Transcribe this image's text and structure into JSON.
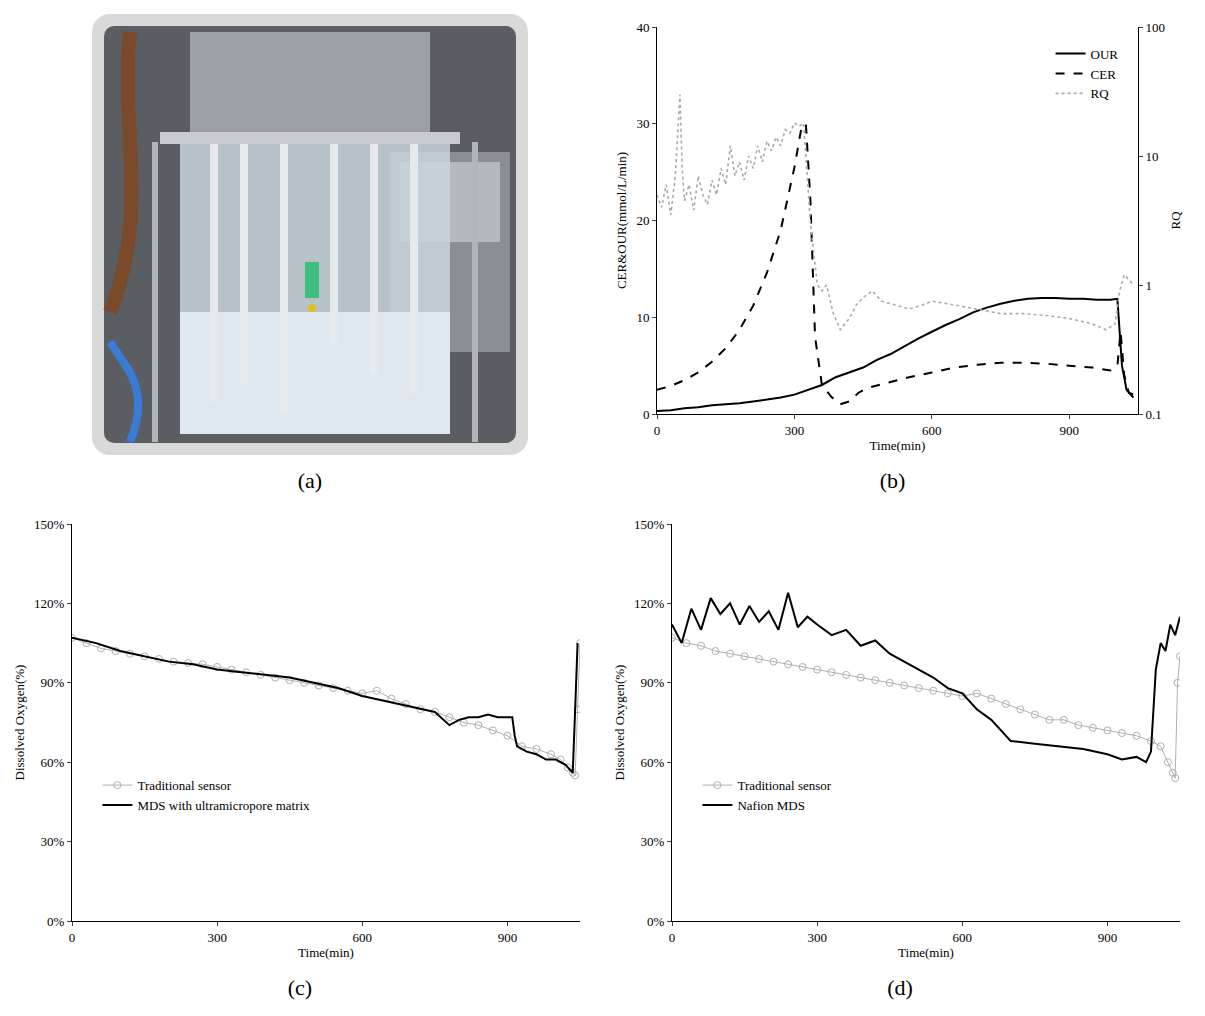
{
  "photo": {
    "caption": "(a)"
  },
  "chart_data": [
    {
      "type": "line",
      "title": "(b)",
      "x_label": "Time(min)",
      "y_label": "CER&OUR(mmol/L/min)",
      "y2_label": "RQ",
      "xlim": [
        0,
        1050
      ],
      "xticks": [
        0,
        300,
        600,
        900
      ],
      "ylim": [
        0,
        40
      ],
      "yticks": [
        0,
        10,
        20,
        30,
        40
      ],
      "y2lim": [
        0.1,
        100
      ],
      "y2ticks": [
        0.1,
        1,
        10,
        100
      ],
      "log": "y2",
      "grid": false,
      "legend": "upper right",
      "series": [
        {
          "name": "OUR",
          "color": "#000000",
          "line_style": "solid",
          "x": [
            0,
            30,
            60,
            90,
            120,
            150,
            180,
            210,
            240,
            270,
            300,
            330,
            360,
            390,
            420,
            450,
            480,
            510,
            540,
            570,
            600,
            630,
            660,
            690,
            720,
            750,
            780,
            810,
            840,
            870,
            900,
            930,
            960,
            990,
            1005,
            1015,
            1025,
            1035,
            1040
          ],
          "values": [
            0.3,
            0.4,
            0.6,
            0.7,
            0.9,
            1.0,
            1.1,
            1.3,
            1.5,
            1.7,
            2.0,
            2.5,
            3.0,
            3.8,
            4.3,
            4.8,
            5.6,
            6.2,
            7.0,
            7.8,
            8.5,
            9.2,
            9.8,
            10.5,
            11.0,
            11.4,
            11.7,
            11.9,
            12.0,
            12.0,
            11.9,
            11.9,
            11.8,
            11.8,
            11.9,
            5.0,
            2.5,
            1.9,
            1.7
          ]
        },
        {
          "name": "CER",
          "color": "#000000",
          "line_style": "dash",
          "x": [
            0,
            30,
            60,
            90,
            120,
            150,
            180,
            210,
            240,
            270,
            300,
            315,
            325,
            335,
            345,
            360,
            380,
            400,
            420,
            440,
            460,
            500,
            550,
            600,
            650,
            700,
            750,
            800,
            850,
            900,
            950,
            990,
            1005,
            1012,
            1020,
            1030,
            1040
          ],
          "values": [
            2.5,
            2.9,
            3.5,
            4.3,
            5.4,
            6.8,
            8.7,
            11.2,
            14.6,
            19.0,
            25.5,
            29.5,
            30.0,
            22.0,
            8.0,
            3.0,
            1.8,
            1.0,
            1.3,
            2.2,
            2.7,
            3.2,
            3.8,
            4.3,
            4.8,
            5.1,
            5.3,
            5.3,
            5.2,
            5.0,
            4.8,
            4.5,
            5.0,
            8.5,
            4.0,
            2.2,
            2.0
          ]
        },
        {
          "name": "RQ",
          "color": "#aaaaaa",
          "line_style": "dot",
          "axis": "y2",
          "x": [
            0,
            10,
            20,
            30,
            40,
            50,
            55,
            60,
            70,
            80,
            90,
            100,
            110,
            120,
            130,
            140,
            150,
            160,
            170,
            180,
            190,
            200,
            210,
            220,
            230,
            240,
            250,
            260,
            270,
            280,
            290,
            300,
            310,
            320,
            335,
            350,
            360,
            370,
            385,
            400,
            410,
            420,
            435,
            450,
            470,
            490,
            520,
            550,
            580,
            600,
            650,
            700,
            750,
            800,
            850,
            900,
            950,
            980,
            1000,
            1010,
            1020,
            1030,
            1040
          ],
          "values": [
            5,
            4,
            6,
            3.5,
            7,
            30,
            8,
            4.5,
            6,
            3.8,
            7,
            5,
            4.2,
            6.5,
            5,
            8,
            6,
            12,
            7,
            9,
            6.5,
            10,
            8,
            12,
            9,
            13,
            11,
            14,
            12,
            16,
            15,
            18,
            17,
            18,
            3,
            1.0,
            0.9,
            1.0,
            0.6,
            0.45,
            0.5,
            0.55,
            0.7,
            0.8,
            0.9,
            0.75,
            0.7,
            0.65,
            0.7,
            0.75,
            0.7,
            0.65,
            0.6,
            0.6,
            0.58,
            0.55,
            0.5,
            0.45,
            0.5,
            0.9,
            1.2,
            1.1,
            1.0
          ]
        }
      ]
    },
    {
      "type": "line",
      "title": "(c)",
      "x_label": "Time(min)",
      "y_label": "Dissolved Oxygen(%)",
      "xlim": [
        0,
        1050
      ],
      "xticks": [
        0,
        300,
        600,
        900
      ],
      "ylim": [
        0,
        150
      ],
      "yticks": [
        {
          "value": 0,
          "label": "0%"
        },
        {
          "value": 30,
          "label": "30%"
        },
        {
          "value": 60,
          "label": "60%"
        },
        {
          "value": 90,
          "label": "90%"
        },
        {
          "value": 120,
          "label": "120%"
        },
        {
          "value": 150,
          "label": "150%"
        }
      ],
      "grid": false,
      "legend": "lower left",
      "series": [
        {
          "name": "Traditional sensor",
          "color": "#b0b0b0",
          "marker": "circle-open",
          "line_style": "solid",
          "x": [
            0,
            30,
            60,
            90,
            120,
            150,
            180,
            210,
            240,
            270,
            300,
            330,
            360,
            390,
            420,
            450,
            480,
            510,
            540,
            570,
            600,
            630,
            660,
            690,
            720,
            750,
            780,
            810,
            840,
            870,
            900,
            930,
            960,
            990,
            1010,
            1025,
            1035,
            1040,
            1045,
            1050
          ],
          "values": [
            107,
            105,
            103,
            102,
            101,
            100,
            99,
            98,
            97.5,
            97,
            96,
            95,
            94,
            93,
            92,
            91,
            90,
            89,
            88,
            87,
            86,
            87,
            84,
            82,
            80,
            79,
            77,
            75,
            74,
            72,
            70,
            66,
            65,
            63,
            61,
            58,
            56,
            55,
            80,
            105
          ]
        },
        {
          "name": "MDS with ultramicropore matrix",
          "color": "#000000",
          "line_style": "solid",
          "x": [
            0,
            50,
            100,
            150,
            200,
            250,
            300,
            350,
            400,
            450,
            500,
            550,
            600,
            650,
            700,
            750,
            780,
            800,
            820,
            840,
            860,
            880,
            900,
            910,
            915,
            920,
            940,
            960,
            980,
            1000,
            1020,
            1035,
            1040,
            1045
          ],
          "values": [
            107,
            105,
            102,
            100,
            98,
            97,
            95,
            94,
            93,
            92,
            90,
            88,
            85,
            83,
            81,
            79,
            74,
            76,
            77,
            77,
            78,
            77,
            77,
            77,
            70,
            66,
            64,
            63,
            61,
            61,
            59,
            56,
            80,
            105
          ]
        }
      ]
    },
    {
      "type": "line",
      "title": "(d)",
      "x_label": "Time(min)",
      "y_label": "Dissolved Oxygen(%)",
      "xlim": [
        0,
        1050
      ],
      "xticks": [
        0,
        300,
        600,
        900
      ],
      "ylim": [
        0,
        150
      ],
      "yticks": [
        {
          "value": 0,
          "label": "0%"
        },
        {
          "value": 30,
          "label": "30%"
        },
        {
          "value": 60,
          "label": "60%"
        },
        {
          "value": 90,
          "label": "90%"
        },
        {
          "value": 120,
          "label": "120%"
        },
        {
          "value": 150,
          "label": "150%"
        }
      ],
      "grid": false,
      "legend": "lower left",
      "series": [
        {
          "name": "Traditional sensor",
          "color": "#b0b0b0",
          "marker": "circle-open",
          "line_style": "solid",
          "x": [
            0,
            30,
            60,
            90,
            120,
            150,
            180,
            210,
            240,
            270,
            300,
            330,
            360,
            390,
            420,
            450,
            480,
            510,
            540,
            570,
            600,
            630,
            660,
            690,
            720,
            750,
            780,
            810,
            840,
            870,
            900,
            930,
            960,
            990,
            1010,
            1025,
            1035,
            1040,
            1045,
            1050
          ],
          "values": [
            107,
            105,
            104,
            102,
            101,
            100,
            99,
            98,
            97,
            96,
            95,
            94,
            93,
            92,
            91,
            90,
            89,
            88,
            87,
            86,
            85,
            86,
            84,
            82,
            80,
            78,
            76,
            76,
            74,
            73,
            72,
            71,
            70,
            68,
            66,
            60,
            56,
            54,
            90,
            100
          ]
        },
        {
          "name": "Nafion MDS",
          "color": "#000000",
          "line_style": "solid",
          "x": [
            0,
            20,
            40,
            60,
            80,
            100,
            120,
            140,
            160,
            180,
            200,
            220,
            240,
            260,
            280,
            300,
            330,
            360,
            390,
            420,
            450,
            480,
            510,
            540,
            570,
            600,
            630,
            660,
            680,
            700,
            750,
            800,
            850,
            900,
            930,
            960,
            980,
            990,
            1000,
            1010,
            1020,
            1030,
            1040,
            1050
          ],
          "values": [
            112,
            105,
            118,
            110,
            122,
            116,
            120,
            112,
            119,
            113,
            117,
            110,
            124,
            111,
            115,
            112,
            108,
            110,
            104,
            106,
            101,
            98,
            95,
            92,
            88,
            86,
            80,
            76,
            72,
            68,
            67,
            66,
            65,
            63,
            61,
            62,
            60,
            64,
            95,
            105,
            102,
            112,
            108,
            115
          ]
        }
      ]
    }
  ]
}
